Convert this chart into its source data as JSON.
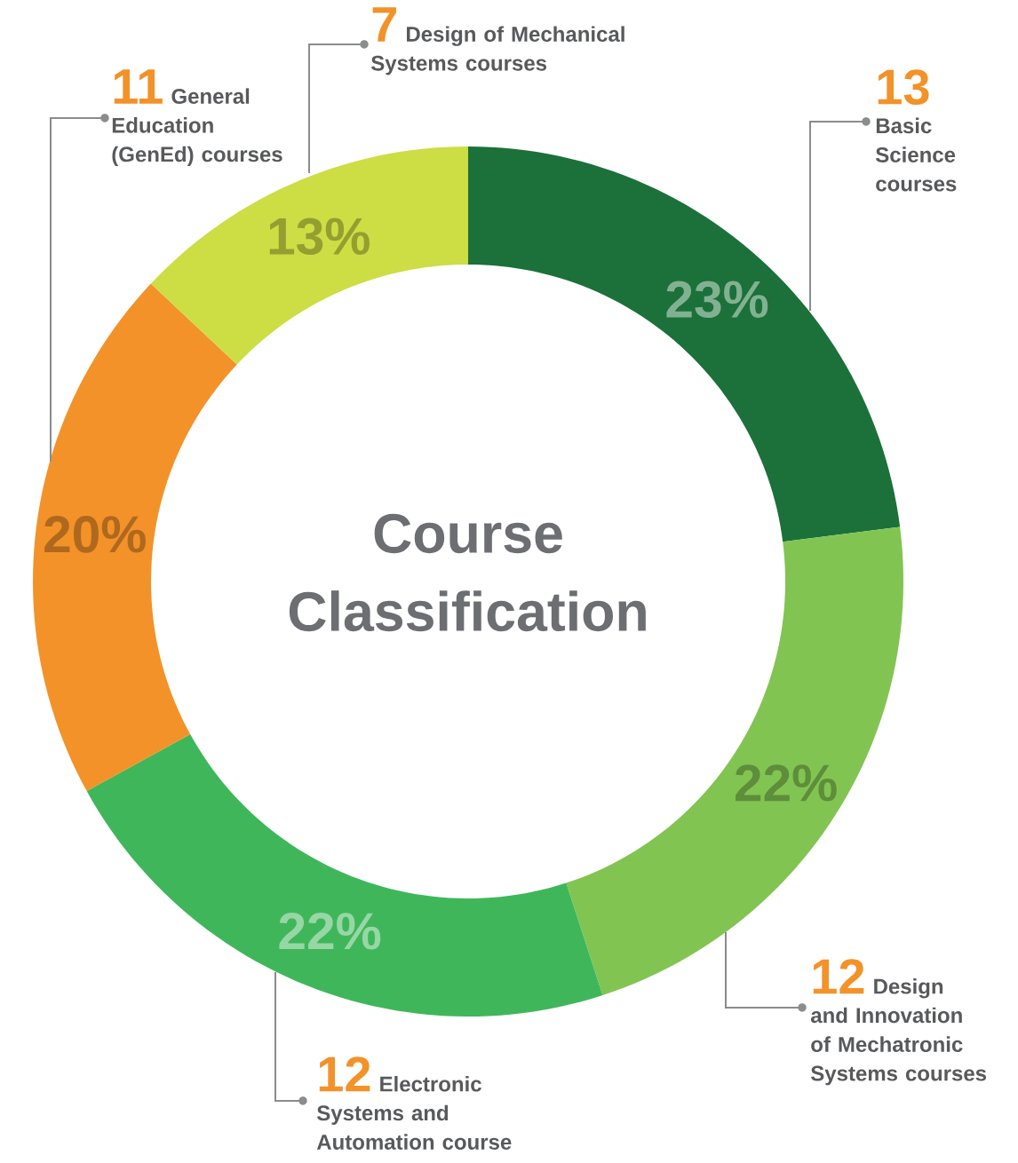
{
  "chart_data": {
    "type": "donut",
    "title": "Course Classification",
    "categories": [
      "Basic Science courses",
      "Design and Innovation of Mechatronic Systems courses",
      "Electronic Systems and Automation course",
      "General Education (GenEd) courses",
      "Design of Mechanical Systems courses"
    ],
    "values": [
      23,
      22,
      22,
      20,
      13
    ],
    "annotations": [
      "13",
      "12",
      "12",
      "11",
      "7"
    ],
    "value_labels": [
      "23%",
      "22%",
      "22%",
      "20%",
      "13%"
    ],
    "colors": [
      "#1b7139",
      "#82c452",
      "#40b65b",
      "#f39229",
      "#cddd44"
    ]
  }
}
